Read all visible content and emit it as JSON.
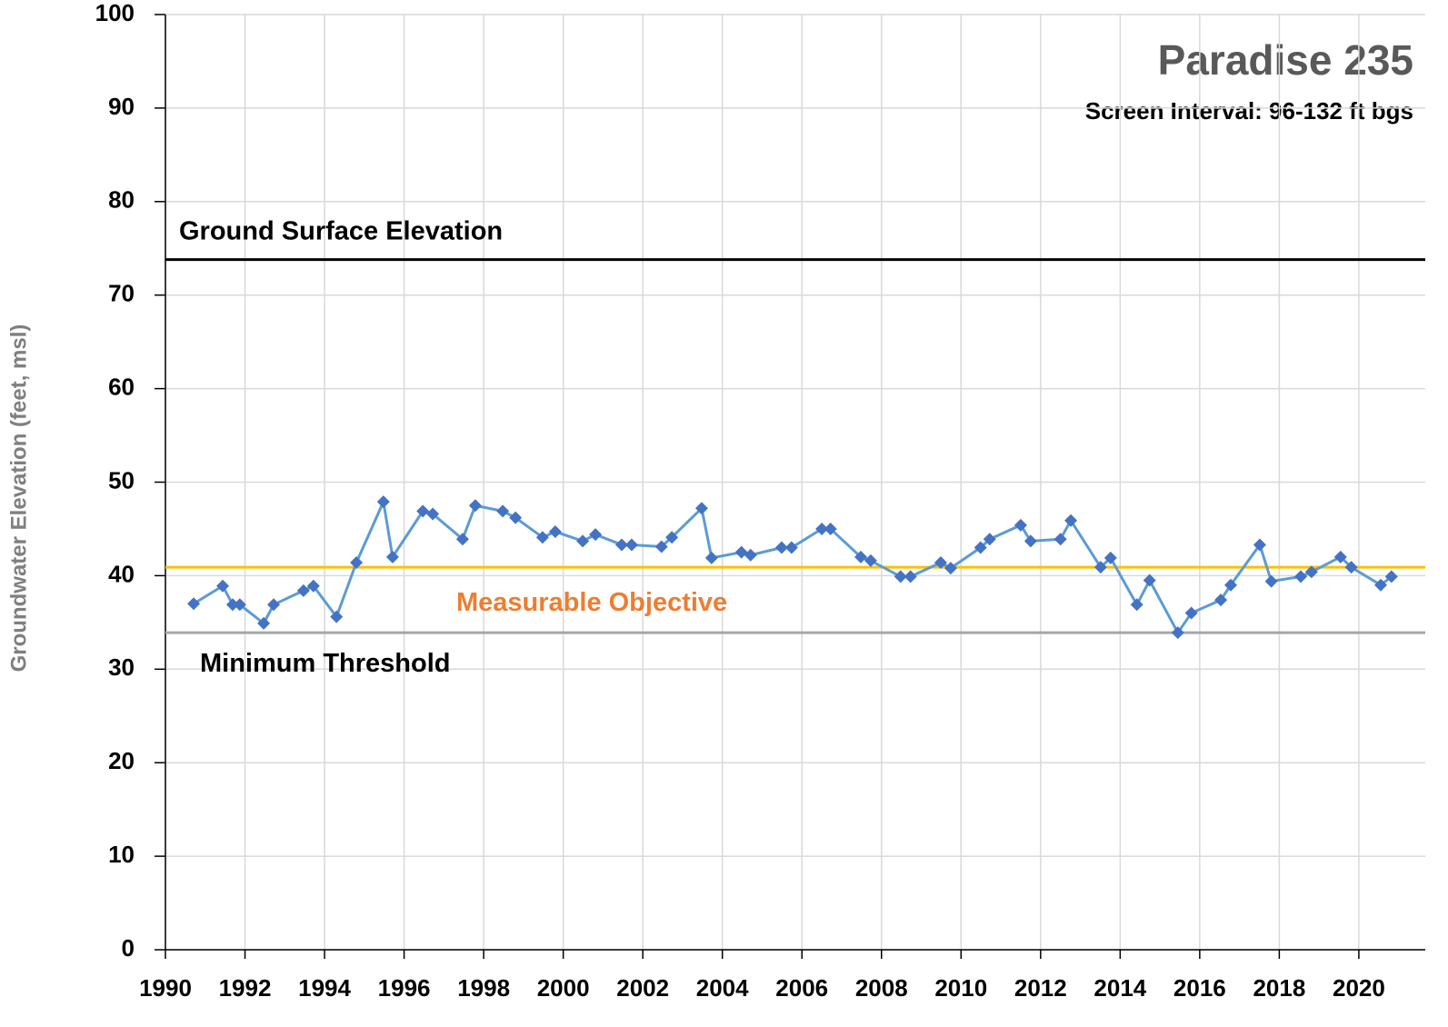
{
  "chart_data": {
    "type": "line",
    "title": "Paradise 235",
    "subtitle": "Screen Interval: 96-132 ft bgs",
    "y_label": "Groundwater Elevation (feet, msl)",
    "x": [
      1990.71,
      1991.44,
      1991.69,
      1991.87,
      1992.47,
      1992.72,
      1993.47,
      1993.72,
      1994.3,
      1994.8,
      1995.48,
      1995.71,
      1996.47,
      1996.72,
      1997.47,
      1997.79,
      1998.48,
      1998.8,
      1999.48,
      1999.8,
      2000.49,
      2000.81,
      2001.47,
      2001.72,
      2002.47,
      2002.73,
      2003.48,
      2003.73,
      2004.48,
      2004.71,
      2005.49,
      2005.74,
      2006.5,
      2006.72,
      2007.48,
      2007.73,
      2008.48,
      2008.73,
      2009.49,
      2009.74,
      2010.49,
      2010.72,
      2011.5,
      2011.75,
      2012.5,
      2012.76,
      2013.51,
      2013.76,
      2014.42,
      2014.74,
      2015.45,
      2015.79,
      2016.53,
      2016.78,
      2017.51,
      2017.8,
      2018.54,
      2018.81,
      2019.54,
      2019.81,
      2020.55,
      2020.82
    ],
    "series": [
      {
        "color": "#5b9bd5",
        "marker_color": "#4472c4",
        "values": [
          37.0,
          38.9,
          36.9,
          36.9,
          34.9,
          36.9,
          38.4,
          38.9,
          35.6,
          41.4,
          47.9,
          42.0,
          46.9,
          46.6,
          43.9,
          47.5,
          46.9,
          46.2,
          44.1,
          44.7,
          43.7,
          44.4,
          43.3,
          43.3,
          43.1,
          44.1,
          47.2,
          41.9,
          42.5,
          42.2,
          43.0,
          43.0,
          45.0,
          45.0,
          42.0,
          41.6,
          39.9,
          39.9,
          41.4,
          40.8,
          43.0,
          43.9,
          45.4,
          43.7,
          43.9,
          45.9,
          40.9,
          41.9,
          36.9,
          39.5,
          33.9,
          36.0,
          37.4,
          39.0,
          43.3,
          39.4,
          39.9,
          40.4,
          42.0,
          40.9,
          39.0,
          39.9
        ]
      }
    ],
    "hlines": [
      {
        "label": "Ground Surface Elevation",
        "value": 73.8,
        "color": "#000000",
        "label_color": "#000000"
      },
      {
        "label": "Measurable Objective",
        "value": 40.9,
        "color": "#ffc000",
        "label_color": "#ed7d31"
      },
      {
        "label": "Minimum Threshold",
        "value": 33.9,
        "color": "#a6a6a6",
        "label_color": "#000000"
      }
    ],
    "xlim": [
      1990,
      2021.67
    ],
    "xticks": [
      1990,
      1992,
      1994,
      1996,
      1998,
      2000,
      2002,
      2004,
      2006,
      2008,
      2010,
      2012,
      2014,
      2016,
      2018,
      2020
    ],
    "ylim": [
      0,
      100
    ],
    "yticks": [
      0,
      10,
      20,
      30,
      40,
      50,
      60,
      70,
      80,
      90,
      100
    ],
    "grid": true
  }
}
